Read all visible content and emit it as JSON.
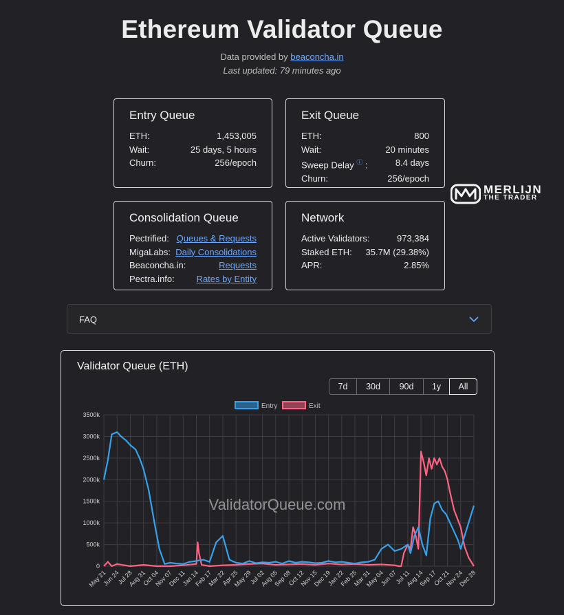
{
  "header": {
    "title": "Ethereum Validator Queue",
    "provided_prefix": "Data provided by ",
    "provided_link": "beaconcha.in",
    "updated": "Last updated: 79 minutes ago"
  },
  "entry_queue": {
    "title": "Entry Queue",
    "rows": [
      {
        "label": "ETH:",
        "value": "1,453,005"
      },
      {
        "label": "Wait:",
        "value": "25 days, 5 hours"
      },
      {
        "label": "Churn:",
        "value": "256/epoch"
      }
    ]
  },
  "exit_queue": {
    "title": "Exit Queue",
    "rows": [
      {
        "label": "ETH:",
        "value": "800"
      },
      {
        "label": "Wait:",
        "value": "20 minutes"
      },
      {
        "label": "Sweep Delay",
        "value": "8.4 days"
      },
      {
        "label": "Churn:",
        "value": "256/epoch"
      }
    ],
    "sweep_suffix": ":"
  },
  "consolidation_queue": {
    "title": "Consolidation Queue",
    "rows": [
      {
        "label": "Pectrified:",
        "link": "Queues & Requests"
      },
      {
        "label": "MigaLabs:",
        "link": "Daily Consolidations"
      },
      {
        "label": "Beaconcha.in:",
        "link": "Requests"
      },
      {
        "label": "Pectra.info:",
        "link": "Rates by Entity"
      }
    ]
  },
  "network": {
    "title": "Network",
    "rows": [
      {
        "label": "Active Validators:",
        "value": "973,384"
      },
      {
        "label": "Staked ETH:",
        "value": "35.7M (29.38%)"
      },
      {
        "label": "APR:",
        "value": "2.85%"
      }
    ]
  },
  "logo": {
    "line1": "MERLIJN",
    "line2": "THE TRADER"
  },
  "faq": {
    "label": "FAQ"
  },
  "chart_card": {
    "title": "Validator Queue (ETH)",
    "ranges": [
      "7d",
      "30d",
      "90d",
      "1y",
      "All"
    ],
    "active_range": "All",
    "watermark": "ValidatorQueue.com"
  },
  "colors": {
    "entry": "#36a2eb",
    "exit": "#ff6384",
    "link": "#6ea8fe",
    "background": "#222226"
  },
  "chart_data": {
    "type": "line",
    "legend": [
      "Entry",
      "Exit"
    ],
    "legend_position": "top",
    "grid": true,
    "ylim": [
      0,
      3500000
    ],
    "y_ticks": [
      "0",
      "500k",
      "1000k",
      "1500k",
      "2000k",
      "2500k",
      "3000k",
      "3500k"
    ],
    "x_ticks": [
      "May 21",
      "Jun 24",
      "Jul 28",
      "Aug 31",
      "Oct 04",
      "Nov 07",
      "Dec 11",
      "Jan 14",
      "Feb 17",
      "Mar 22",
      "Apr 25",
      "May 29",
      "Jul 02",
      "Aug 05",
      "Sep 08",
      "Oct 12",
      "Nov 15",
      "Dec 19",
      "Jan 22",
      "Feb 25",
      "Mar 31",
      "May 04",
      "Jun 07",
      "Jul 11",
      "Aug 14",
      "Sep 17",
      "Oct 21",
      "Nov 24",
      "Dec 28"
    ],
    "series": [
      {
        "name": "Entry",
        "x": [
          0,
          0.3,
          0.6,
          1.0,
          1.3,
          1.7,
          2.0,
          2.4,
          2.7,
          3.0,
          3.4,
          3.8,
          4.2,
          4.6,
          5,
          5.5,
          6,
          6.5,
          7,
          7.5,
          8,
          8.5,
          9,
          9.5,
          10,
          10.5,
          11,
          11.5,
          12,
          12.5,
          13,
          13.5,
          14,
          14.5,
          15,
          15.5,
          16,
          16.5,
          17,
          17.5,
          18,
          18.5,
          19,
          19.5,
          20,
          20.5,
          21,
          21.5,
          22,
          22.5,
          23,
          23.2,
          23.5,
          23.8,
          24.1,
          24.4,
          24.7,
          25,
          25.3,
          25.6,
          25.9,
          26.2,
          26.5,
          26.8,
          27,
          27.3,
          27.6,
          28
        ],
        "values": [
          2000000,
          2450000,
          3050000,
          3100000,
          3000000,
          2900000,
          2800000,
          2700000,
          2500000,
          2250000,
          1750000,
          1050000,
          400000,
          50000,
          80000,
          60000,
          50000,
          100000,
          120000,
          150000,
          100000,
          550000,
          700000,
          150000,
          80000,
          60000,
          120000,
          70000,
          90000,
          80000,
          100000,
          60000,
          120000,
          80000,
          100000,
          90000,
          70000,
          80000,
          120000,
          90000,
          100000,
          80000,
          60000,
          90000,
          100000,
          150000,
          400000,
          500000,
          350000,
          400000,
          500000,
          300000,
          700000,
          900000,
          500000,
          250000,
          1100000,
          1450000,
          1500000,
          1300000,
          1200000,
          1000000,
          800000,
          600000,
          400000,
          700000,
          1000000,
          1400000
        ]
      },
      {
        "name": "Exit",
        "x": [
          0,
          0.3,
          0.6,
          1.0,
          2,
          3,
          4,
          5,
          6,
          7,
          7.1,
          7.2,
          7.4,
          8,
          9,
          10,
          11,
          12,
          13,
          14,
          15,
          16,
          17,
          18,
          19,
          20,
          21,
          22,
          22.3,
          22.5,
          22.7,
          23,
          23.2,
          23.4,
          23.6,
          23.8,
          24.0,
          24.2,
          24.4,
          24.6,
          24.8,
          25.0,
          25.2,
          25.4,
          25.6,
          25.8,
          26.0,
          26.2,
          26.5,
          27,
          27.3,
          27.6,
          28
        ],
        "values": [
          0,
          100000,
          0,
          50000,
          0,
          30000,
          0,
          0,
          20000,
          50000,
          550000,
          300000,
          30000,
          0,
          20000,
          30000,
          50000,
          60000,
          30000,
          40000,
          50000,
          30000,
          60000,
          40000,
          50000,
          30000,
          40000,
          20000,
          0,
          0,
          300000,
          500000,
          400000,
          900000,
          700000,
          400000,
          2650000,
          2400000,
          2100000,
          2500000,
          2250000,
          2500000,
          2350000,
          2500000,
          2300000,
          2200000,
          2000000,
          1700000,
          1300000,
          900000,
          450000,
          200000,
          0
        ]
      }
    ]
  }
}
